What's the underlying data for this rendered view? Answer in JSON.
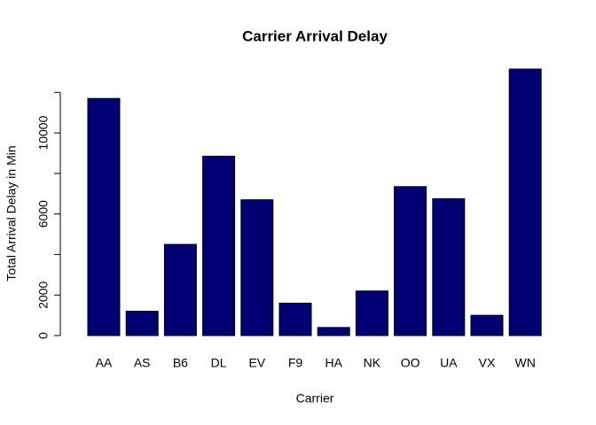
{
  "chart_data": {
    "type": "bar",
    "title": "Carrier Arrival Delay",
    "x_label": "Carrier",
    "y_label": "Total Arrival Delay in Min",
    "categories": [
      "AA",
      "AS",
      "B6",
      "DL",
      "EV",
      "F9",
      "HA",
      "NK",
      "OO",
      "UA",
      "VX",
      "WN"
    ],
    "values": [
      11700,
      1200,
      4500,
      8850,
      6700,
      1600,
      400,
      2200,
      7350,
      6750,
      1000,
      13150
    ],
    "color": "#000073",
    "ylim": [
      0,
      13150
    ],
    "yticks": [
      0,
      2000,
      6000,
      10000
    ],
    "minor_yticks": [
      4000,
      8000,
      12000
    ]
  }
}
